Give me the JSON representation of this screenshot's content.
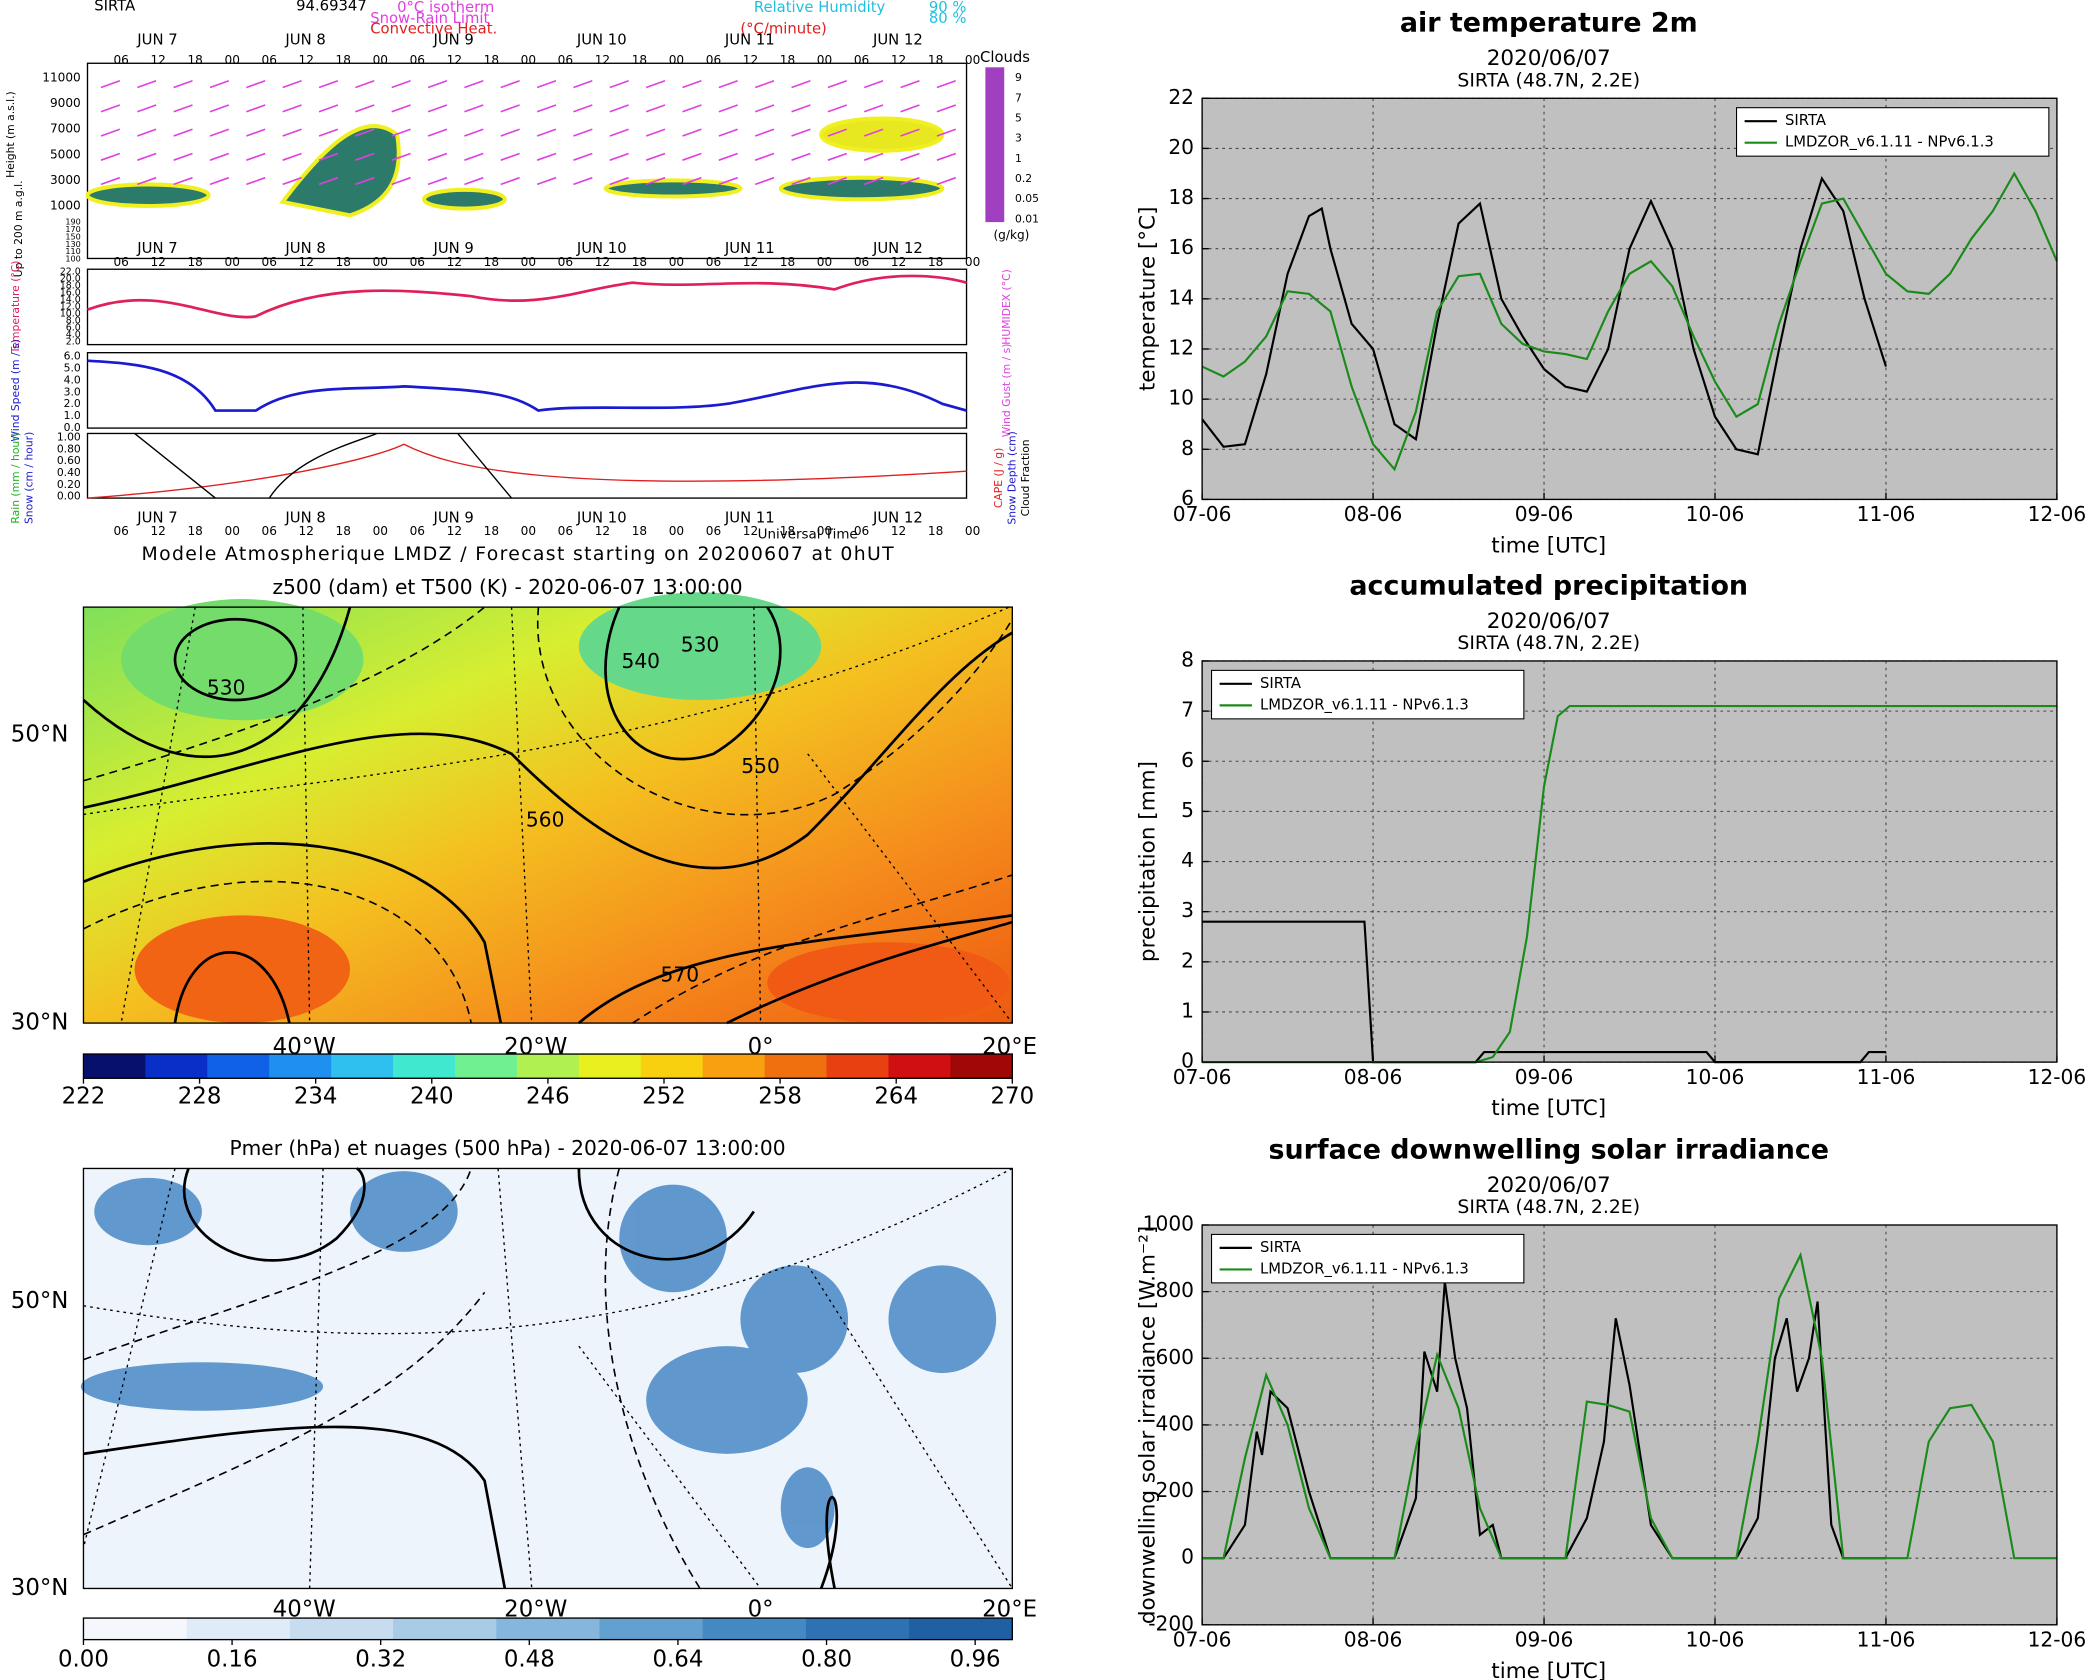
{
  "chart_data": [
    {
      "type": "line",
      "title": "air temperature 2m",
      "subtitle": "2020/06/07",
      "location": "SIRTA (48.7N, 2.2E)",
      "xlabel": "time [UTC]",
      "ylabel": "temperature [°C]",
      "xlim": [
        0,
        5
      ],
      "xticks": [
        {
          "value": 0,
          "label": "07-06"
        },
        {
          "value": 1,
          "label": "08-06"
        },
        {
          "value": 2,
          "label": "09-06"
        },
        {
          "value": 3,
          "label": "10-06"
        },
        {
          "value": 4,
          "label": "11-06"
        },
        {
          "value": 5,
          "label": "12-06"
        }
      ],
      "ylim": [
        6,
        22
      ],
      "yticks": [
        6,
        8,
        10,
        12,
        14,
        16,
        18,
        20,
        22
      ],
      "grid": true,
      "legend": "upper right",
      "facecolor": "#c0c0c0",
      "series": [
        {
          "name": "SIRTA",
          "color": "#000000",
          "x": [
            0,
            0.125,
            0.25,
            0.375,
            0.5,
            0.625,
            0.7,
            0.75,
            0.875,
            1.0,
            1.125,
            1.25,
            1.375,
            1.5,
            1.625,
            1.75,
            1.875,
            2.0,
            2.125,
            2.25,
            2.375,
            2.5,
            2.625,
            2.75,
            2.875,
            3.0,
            3.125,
            3.25,
            3.375,
            3.5,
            3.625,
            3.75,
            3.875,
            4.0
          ],
          "values": [
            9.2,
            8.1,
            8.2,
            11,
            15,
            17.3,
            17.6,
            16,
            13,
            12,
            9,
            8.4,
            13,
            17,
            17.8,
            14,
            12.5,
            11.2,
            10.5,
            10.3,
            12,
            16,
            17.9,
            16,
            12,
            9.3,
            8,
            7.8,
            12,
            16,
            18.8,
            17.5,
            14,
            11.3
          ]
        },
        {
          "name": "LMDZOR_v6.1.11 - NPv6.1.3",
          "color": "#1a8a1a",
          "x": [
            0,
            0.125,
            0.25,
            0.375,
            0.5,
            0.625,
            0.75,
            0.875,
            1.0,
            1.125,
            1.25,
            1.375,
            1.5,
            1.625,
            1.75,
            1.875,
            2.0,
            2.125,
            2.25,
            2.375,
            2.5,
            2.625,
            2.75,
            2.875,
            3.0,
            3.125,
            3.25,
            3.375,
            3.5,
            3.625,
            3.75,
            3.875,
            4.0,
            4.125,
            4.25,
            4.375,
            4.5,
            4.625,
            4.75,
            4.875,
            5.0
          ],
          "values": [
            11.3,
            10.9,
            11.5,
            12.5,
            14.3,
            14.2,
            13.5,
            10.5,
            8.2,
            7.2,
            9.5,
            13.5,
            14.9,
            15,
            13,
            12.2,
            11.9,
            11.8,
            11.6,
            13.5,
            15,
            15.5,
            14.5,
            12.5,
            10.7,
            9.3,
            9.8,
            13,
            15.5,
            17.8,
            18,
            16.5,
            15,
            14.3,
            14.2,
            15,
            16.4,
            17.5,
            19,
            17.5,
            15.5
          ]
        }
      ]
    },
    {
      "type": "line",
      "title": "accumulated precipitation",
      "subtitle": "2020/06/07",
      "location": "SIRTA (48.7N, 2.2E)",
      "xlabel": "time [UTC]",
      "ylabel": "precipitation [mm]",
      "xlim": [
        0,
        5
      ],
      "xticks": [
        {
          "value": 0,
          "label": "07-06"
        },
        {
          "value": 1,
          "label": "08-06"
        },
        {
          "value": 2,
          "label": "09-06"
        },
        {
          "value": 3,
          "label": "10-06"
        },
        {
          "value": 4,
          "label": "11-06"
        },
        {
          "value": 5,
          "label": "12-06"
        }
      ],
      "ylim": [
        0,
        8
      ],
      "yticks": [
        0,
        1,
        2,
        3,
        4,
        5,
        6,
        7,
        8
      ],
      "grid": true,
      "legend": "upper left",
      "facecolor": "#c0c0c0",
      "series": [
        {
          "name": "SIRTA",
          "color": "#000000",
          "x": [
            0,
            0.95,
            1.0,
            1.6,
            1.65,
            2.95,
            3.0,
            3.85,
            3.9,
            4.0
          ],
          "values": [
            2.8,
            2.8,
            0,
            0,
            0.2,
            0.2,
            0,
            0,
            0.2,
            0.2
          ]
        },
        {
          "name": "LMDZOR_v6.1.11 - NPv6.1.3",
          "color": "#1a8a1a",
          "x": [
            0,
            1.6,
            1.7,
            1.8,
            1.9,
            2.0,
            2.08,
            2.15,
            5.0
          ],
          "values": [
            0,
            0,
            0.1,
            0.6,
            2.5,
            5.5,
            6.9,
            7.1,
            7.1
          ]
        }
      ]
    },
    {
      "type": "line",
      "title": "surface downwelling solar irradiance",
      "subtitle": "2020/06/07",
      "location": "SIRTA (48.7N, 2.2E)",
      "xlabel": "time [UTC]",
      "ylabel": "downwelling solar irradiance [W.m⁻²]",
      "xlim": [
        0,
        5
      ],
      "xticks": [
        {
          "value": 0,
          "label": "07-06"
        },
        {
          "value": 1,
          "label": "08-06"
        },
        {
          "value": 2,
          "label": "09-06"
        },
        {
          "value": 3,
          "label": "10-06"
        },
        {
          "value": 4,
          "label": "11-06"
        },
        {
          "value": 5,
          "label": "12-06"
        }
      ],
      "ylim": [
        -200,
        1000
      ],
      "yticks": [
        -200,
        0,
        200,
        400,
        600,
        800,
        1000
      ],
      "grid": true,
      "legend": "upper left",
      "facecolor": "#c0c0c0",
      "series": [
        {
          "name": "SIRTA",
          "color": "#000000",
          "x": [
            0,
            0.125,
            0.25,
            0.32,
            0.35,
            0.4,
            0.5,
            0.625,
            0.75,
            1.0,
            1.125,
            1.25,
            1.3,
            1.375,
            1.42,
            1.48,
            1.55,
            1.625,
            1.7,
            1.75,
            2.0,
            2.125,
            2.25,
            2.35,
            2.42,
            2.5,
            2.625,
            2.75,
            3.0,
            3.125,
            3.25,
            3.35,
            3.42,
            3.48,
            3.55,
            3.6,
            3.68,
            3.75,
            4.0
          ],
          "values": [
            0,
            0,
            100,
            380,
            310,
            500,
            450,
            200,
            0,
            0,
            0,
            180,
            620,
            500,
            830,
            600,
            450,
            70,
            100,
            0,
            0,
            0,
            120,
            350,
            720,
            520,
            100,
            0,
            0,
            0,
            120,
            600,
            720,
            500,
            600,
            770,
            100,
            0,
            0
          ]
        },
        {
          "name": "LMDZOR_v6.1.11 - NPv6.1.3",
          "color": "#1a8a1a",
          "x": [
            0,
            0.125,
            0.25,
            0.375,
            0.5,
            0.625,
            0.75,
            1.0,
            1.125,
            1.25,
            1.375,
            1.5,
            1.625,
            1.75,
            2.0,
            2.125,
            2.25,
            2.375,
            2.5,
            2.625,
            2.75,
            3.0,
            3.125,
            3.25,
            3.375,
            3.5,
            3.625,
            3.75,
            4.0,
            4.125,
            4.25,
            4.375,
            4.5,
            4.625,
            4.75,
            5.0
          ],
          "values": [
            0,
            0,
            300,
            550,
            400,
            150,
            0,
            0,
            0,
            330,
            610,
            450,
            150,
            0,
            0,
            0,
            470,
            460,
            440,
            120,
            0,
            0,
            0,
            350,
            780,
            910,
            600,
            0,
            0,
            0,
            350,
            450,
            460,
            350,
            0,
            0
          ]
        }
      ]
    }
  ],
  "meteogram": {
    "station": "SIRTA",
    "value": "94.69347",
    "legend": [
      "0°C isotherm",
      "Snow-Rain Limit",
      "Convective Heat.",
      "(°C/minute)",
      "Relative Humidity",
      "90 %",
      "80 %"
    ],
    "days": [
      "JUN 7",
      "JUN 8",
      "JUN 9",
      "JUN 10",
      "JUN 11",
      "JUN 12"
    ],
    "hours": [
      "06",
      "12",
      "18",
      "00"
    ],
    "height_label": "Height (m a.s.l.)",
    "height_ticks": [
      "11000",
      "9000",
      "7000",
      "5000",
      "3000",
      "1000"
    ],
    "low_label": "Up to 200 m a.g.l.",
    "low_ticks": [
      "190",
      "170",
      "150",
      "130",
      "110",
      "100"
    ],
    "clouds_label": "Clouds",
    "cloud_ticks": [
      "9",
      "7",
      "5",
      "3",
      "1",
      "0.2",
      "0.05",
      "0.01"
    ],
    "cloud_unit": "(g/kg)",
    "temp_label": "Temperature (°C)",
    "humidex_label": "HUMIDEX (°C)",
    "temp_ticks": [
      "22.0",
      "20.0",
      "18.0",
      "16.0",
      "14.0",
      "12.0",
      "10.0",
      "8.0",
      "6.0",
      "4.0",
      "2.0"
    ],
    "wind_label": "Wind Speed (m / s)",
    "gust_label": "Wind Gust (m / s)",
    "wind_ticks": [
      "6.0",
      "5.0",
      "4.0",
      "3.0",
      "2.0",
      "1.0",
      "0.0"
    ],
    "rain_label": "Rain (mm / hour)",
    "snow_label": "Snow (cm / hour)",
    "cape_label": "CAPE (J / g)",
    "depth_label": "Snow Depth (cm)",
    "cf_label": "Cloud Fraction",
    "rain_ticks": [
      "1.00",
      "0.80",
      "0.60",
      "0.40",
      "0.20",
      "0.00"
    ],
    "xlabel": "Universal Time",
    "footer": "Modele Atmospherique LMDZ / Forecast starting on 20200607 at 0hUT"
  },
  "maps": [
    {
      "title": "z500 (dam) et T500 (K) - 2020-06-07 13:00:00",
      "lat_labels": [
        "50°N",
        "30°N"
      ],
      "lon_labels": [
        "40°W",
        "20°W",
        "0°",
        "20°E"
      ],
      "contour_labels": [
        "530",
        "540",
        "530",
        "550",
        "560",
        "570"
      ],
      "colorbar": {
        "lim": [
          222,
          270
        ],
        "ticks": [
          222,
          228,
          234,
          240,
          246,
          252,
          258,
          264,
          270
        ]
      }
    },
    {
      "title": "Pmer (hPa) et nuages (500 hPa) - 2020-06-07 13:00:00",
      "lat_labels": [
        "50°N",
        "30°N"
      ],
      "lon_labels": [
        "40°W",
        "20°W",
        "0°",
        "20°E"
      ],
      "colorbar": {
        "lim": [
          0,
          1
        ],
        "ticks": [
          {
            "value": 0,
            "label": "0.00"
          },
          {
            "value": 0.16,
            "label": "0.16"
          },
          {
            "value": 0.32,
            "label": "0.32"
          },
          {
            "value": 0.48,
            "label": "0.48"
          },
          {
            "value": 0.64,
            "label": "0.64"
          },
          {
            "value": 0.8,
            "label": "0.80"
          },
          {
            "value": 0.96,
            "label": "0.96"
          }
        ]
      }
    }
  ]
}
